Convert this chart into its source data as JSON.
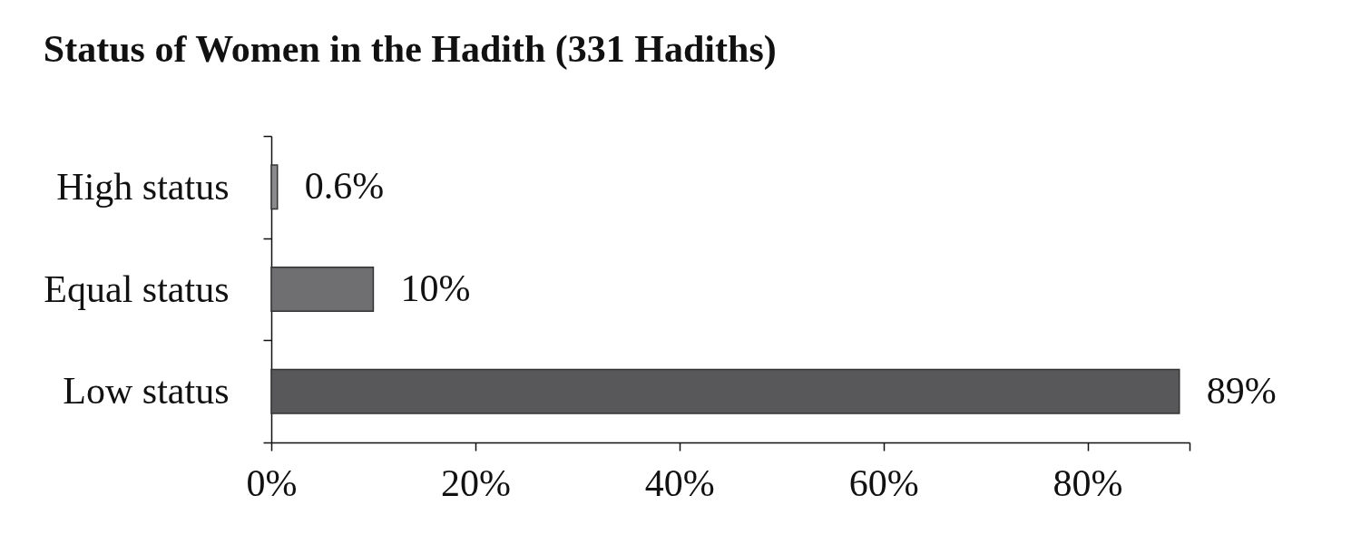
{
  "chart_data": {
    "type": "bar",
    "orientation": "horizontal",
    "title": "Status of Women in the Hadith (331 Hadiths)",
    "categories": [
      "High status",
      "Equal status",
      "Low status"
    ],
    "values": [
      0.6,
      10,
      89
    ],
    "colors": [
      "#8a8a8c",
      "#6f6f72",
      "#58585a"
    ],
    "value_labels": [
      "0.6%",
      "10%",
      "89%"
    ],
    "xlim": [
      0,
      90
    ],
    "xticks": [
      {
        "value": 0,
        "label": "0%"
      },
      {
        "value": 20,
        "label": "20%"
      },
      {
        "value": 40,
        "label": "40%"
      },
      {
        "value": 60,
        "label": "60%"
      },
      {
        "value": 80,
        "label": "80%"
      },
      {
        "value": 90,
        "label": null
      }
    ],
    "grid": false
  }
}
